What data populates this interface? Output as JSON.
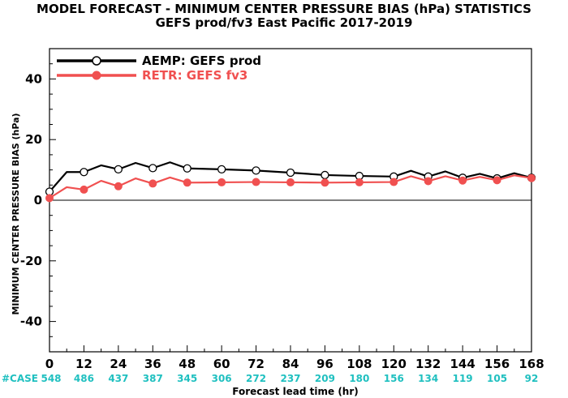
{
  "title_line1": "MODEL FORECAST - MINIMUM CENTER PRESSURE BIAS (hPa) STATISTICS",
  "title_line2": "GEFS prod/fv3 East Pacific 2017-2019",
  "colors": {
    "series1": "#000000",
    "series2": "#f05050",
    "cases": "#20c0c0"
  },
  "case_label": "#CASE",
  "chart_data": {
    "type": "line",
    "xlabel": "Forecast lead time (hr)",
    "ylabel": "MINIMUM CENTER PRESSURE BIAS (hPa)",
    "xlim": [
      0,
      168
    ],
    "ylim": [
      -50,
      50
    ],
    "xticks": [
      0,
      12,
      24,
      36,
      48,
      60,
      72,
      84,
      96,
      108,
      120,
      132,
      144,
      156,
      168
    ],
    "yticks": [
      -40,
      -20,
      0,
      20,
      40
    ],
    "grid": false,
    "legend_position": "top-left",
    "cases": [
      548,
      486,
      437,
      387,
      345,
      306,
      272,
      237,
      209,
      180,
      156,
      134,
      119,
      105,
      92
    ],
    "series": [
      {
        "name": "AEMP: GEFS prod",
        "color": "#000000",
        "x": [
          0,
          6,
          12,
          18,
          24,
          30,
          36,
          42,
          48,
          60,
          72,
          84,
          96,
          108,
          120,
          126,
          132,
          138,
          144,
          150,
          156,
          162,
          168
        ],
        "values": [
          2.8,
          9.3,
          9.3,
          11.5,
          10.2,
          12.3,
          10.6,
          12.5,
          10.5,
          10.2,
          9.8,
          9.1,
          8.3,
          8.0,
          7.8,
          9.7,
          7.8,
          9.5,
          7.4,
          8.7,
          7.2,
          8.9,
          7.4
        ],
        "markers": [
          0,
          12,
          24,
          36,
          48,
          60,
          72,
          84,
          96,
          108,
          120,
          132,
          144,
          156,
          168
        ]
      },
      {
        "name": "RETR: GEFS fv3",
        "color": "#f05050",
        "x": [
          0,
          6,
          12,
          18,
          24,
          30,
          36,
          42,
          48,
          60,
          72,
          84,
          96,
          108,
          120,
          126,
          132,
          138,
          144,
          150,
          156,
          162,
          168
        ],
        "values": [
          0.7,
          4.3,
          3.5,
          6.4,
          4.6,
          7.2,
          5.5,
          7.5,
          5.8,
          5.9,
          6.0,
          5.9,
          5.8,
          5.9,
          6.0,
          7.9,
          6.3,
          7.9,
          6.5,
          7.7,
          6.6,
          8.2,
          7.3
        ],
        "markers": [
          0,
          12,
          24,
          36,
          48,
          60,
          72,
          84,
          96,
          108,
          120,
          132,
          144,
          156,
          168
        ]
      }
    ]
  }
}
